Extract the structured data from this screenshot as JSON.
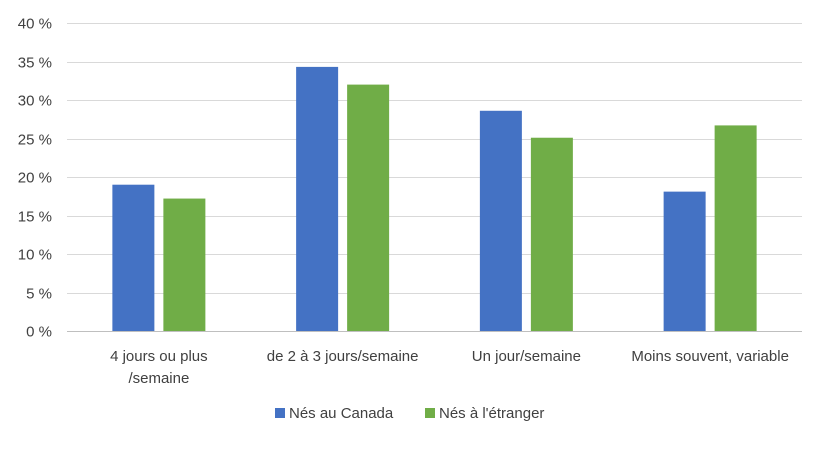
{
  "chart_data": {
    "type": "bar",
    "categories": [
      [
        "4 jours ou plus",
        "/semaine"
      ],
      [
        "de 2 à 3 jours/semaine"
      ],
      [
        "Un jour/semaine"
      ],
      [
        "Moins souvent, variable"
      ]
    ],
    "series": [
      {
        "name": "Nés au Canada",
        "color": "#4472c4",
        "values": [
          19.0,
          34.3,
          28.6,
          18.1
        ]
      },
      {
        "name": "Nés à l'étranger",
        "color": "#70ad47",
        "values": [
          17.2,
          32.0,
          25.1,
          26.7
        ]
      }
    ],
    "ylim": [
      0,
      40
    ],
    "yticks": [
      {
        "value": 0,
        "label": "0 %"
      },
      {
        "value": 5,
        "label": "5 %"
      },
      {
        "value": 10,
        "label": "10 %"
      },
      {
        "value": 15,
        "label": "15 %"
      },
      {
        "value": 20,
        "label": "20 %"
      },
      {
        "value": 25,
        "label": "25 %"
      },
      {
        "value": 30,
        "label": "30 %"
      },
      {
        "value": 35,
        "label": "35 %"
      },
      {
        "value": 40,
        "label": "40 %"
      }
    ],
    "grid": true,
    "legend_position": "bottom"
  }
}
